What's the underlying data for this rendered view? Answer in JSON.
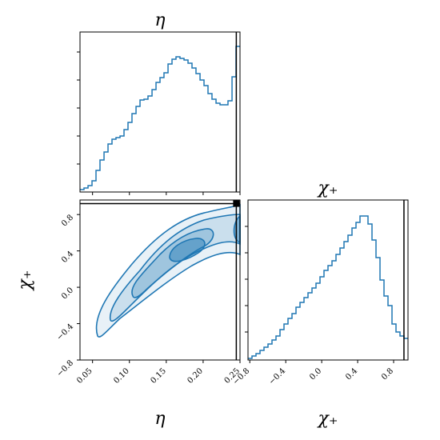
{
  "chart_data": [
    {
      "type": "histogram",
      "title": "η",
      "color": "#1f77b4",
      "bins": [
        0.033,
        0.0384,
        0.0439,
        0.0493,
        0.0547,
        0.0601,
        0.0656,
        0.071,
        0.0764,
        0.0818,
        0.0873,
        0.0927,
        0.0981,
        0.1035,
        0.109,
        0.1144,
        0.1198,
        0.1252,
        0.1307,
        0.1361,
        0.1415,
        0.1469,
        0.1524,
        0.1578,
        0.1632,
        0.1686,
        0.1741,
        0.1795,
        0.1849,
        0.1903,
        0.1958,
        0.2012,
        0.2066,
        0.212,
        0.2175,
        0.2229,
        0.2283,
        0.2337,
        0.2392,
        0.2446,
        0.25
      ],
      "values": [
        3,
        5,
        8,
        14,
        27,
        40,
        50,
        60,
        66,
        68,
        70,
        78,
        87,
        98,
        107,
        115,
        116,
        120,
        128,
        137,
        143,
        149,
        160,
        166,
        169,
        167,
        165,
        161,
        155,
        148,
        140,
        133,
        123,
        116,
        111,
        109,
        109,
        114,
        144,
        182
      ],
      "xlim": [
        0.033,
        0.25
      ],
      "xticks": [
        0.05,
        0.1,
        0.15,
        0.2,
        0.25
      ],
      "ylim": [
        0,
        200
      ],
      "yticks": [
        35,
        70,
        105,
        140,
        175
      ],
      "truth": 0.245
    },
    {
      "type": "contour",
      "xlabel": "η",
      "ylabel": "χ₊",
      "color": "#1f77b4",
      "xlim": [
        0.033,
        0.25
      ],
      "ylim": [
        -0.8,
        0.96
      ],
      "xticks": [
        0.05,
        {
          "value": 0.1,
          "label": "0.10"
        },
        0.15,
        {
          "value": 0.2,
          "label": "0.20"
        },
        0.25
      ],
      "yticks": [
        {
          "value": -0.8,
          "label": "−0.8"
        },
        {
          "value": -0.4,
          "label": "−0.4"
        },
        {
          "value": 0,
          "label": "0.0"
        },
        0.4,
        0.8
      ],
      "truth": [
        0.245,
        0.92
      ]
    },
    {
      "type": "histogram",
      "title": "χ₊",
      "xlabel": "χ₊",
      "color": "#1f77b4",
      "bins": [
        -0.82,
        -0.7755,
        -0.731,
        -0.6865,
        -0.642,
        -0.5975,
        -0.553,
        -0.5085,
        -0.464,
        -0.4195,
        -0.375,
        -0.3305,
        -0.286,
        -0.2415,
        -0.197,
        -0.1525,
        -0.108,
        -0.0635,
        -0.019,
        0.0255,
        0.07,
        0.1145,
        0.159,
        0.2035,
        0.248,
        0.2925,
        0.337,
        0.3815,
        0.426,
        0.4705,
        0.515,
        0.5595,
        0.604,
        0.6485,
        0.693,
        0.7375,
        0.782,
        0.8265,
        0.871,
        0.9155,
        0.96
      ],
      "values": [
        2,
        5,
        8,
        12,
        16,
        20,
        25,
        30,
        38,
        45,
        52,
        58,
        66,
        72,
        78,
        84,
        90,
        96,
        104,
        112,
        118,
        124,
        132,
        140,
        148,
        156,
        165,
        172,
        180,
        180,
        170,
        150,
        128,
        100,
        80,
        68,
        45,
        35,
        30,
        27
      ],
      "xlim": [
        -0.82,
        0.96
      ],
      "xticks": [
        {
          "value": -0.8,
          "label": "−0.8"
        },
        {
          "value": -0.4,
          "label": "−0.4"
        },
        {
          "value": 0,
          "label": "0.0"
        },
        0.4,
        0.8
      ],
      "ylim": [
        0,
        200
      ],
      "yticks": [
        35,
        68,
        101,
        134,
        167
      ],
      "truth": 0.915
    }
  ]
}
